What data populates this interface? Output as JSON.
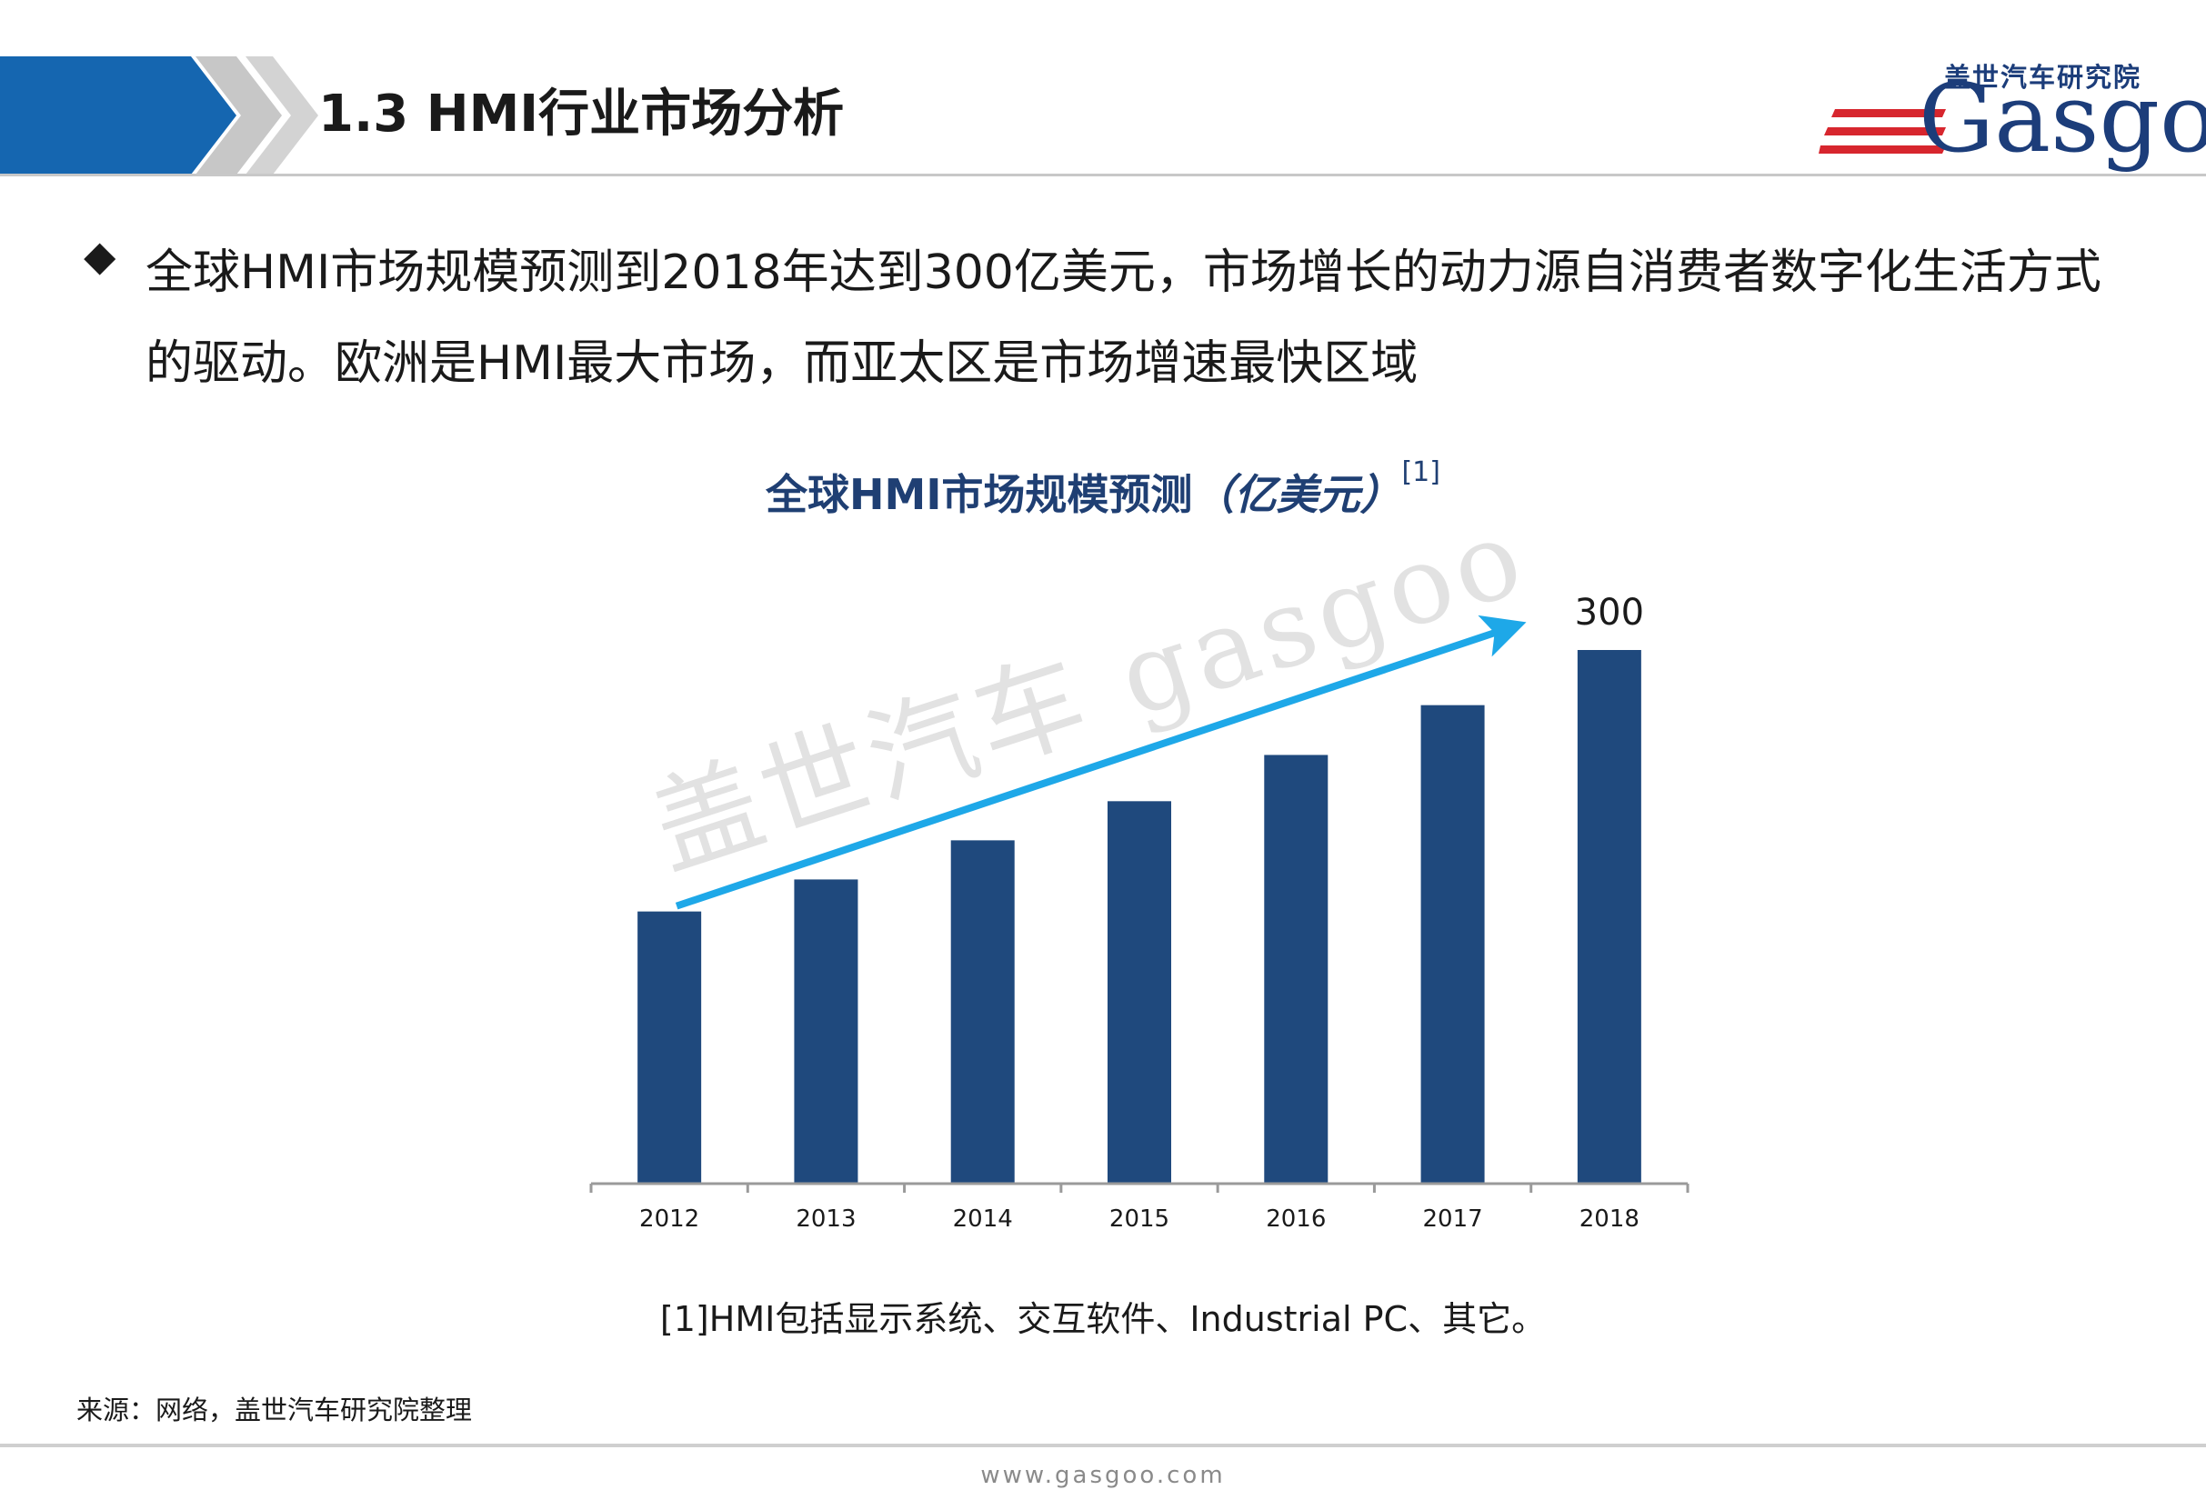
{
  "header": {
    "title": "1.3 HMI行业市场分析",
    "logo": {
      "cn": "盖世汽车研究院",
      "en": "Gasgoo"
    }
  },
  "bullet": {
    "text": "全球HMI市场规模预测到2018年达到300亿美元，市场增长的动力源自消费者数字化生活方式的驱动。欧洲是HMI最大市场，而亚太区是市场增速最快区域"
  },
  "chart_title": {
    "main": "全球HMI市场规模预测",
    "unit": "（亿美元）",
    "ref": "[1]"
  },
  "chart_data": {
    "type": "bar",
    "title": "全球HMI市场规模预测（亿美元）",
    "categories": [
      "2012",
      "2013",
      "2014",
      "2015",
      "2016",
      "2017",
      "2018"
    ],
    "values": [
      153,
      171,
      193,
      215,
      241,
      269,
      300
    ],
    "data_labels": [
      {
        "category": "2018",
        "text": "300"
      }
    ],
    "ylim": [
      0,
      300
    ],
    "bar_color": "#1f497d",
    "trend_arrow_color": "#1ea8e8",
    "watermark": "盖世汽车 gasgoo",
    "grid": false,
    "legend": "none"
  },
  "footnote": "[1]HMI包括显示系统、交互软件、Industrial PC、其它。",
  "source": "来源：网络，盖世汽车研究院整理",
  "footer_url": "www.gasgoo.com",
  "colors": {
    "header_blue": "#1566b0",
    "chevron_gray": "#c7c7c7",
    "logo_red": "#d7262e",
    "logo_blue": "#1c3d7a",
    "title_text": "#1f3f73"
  }
}
